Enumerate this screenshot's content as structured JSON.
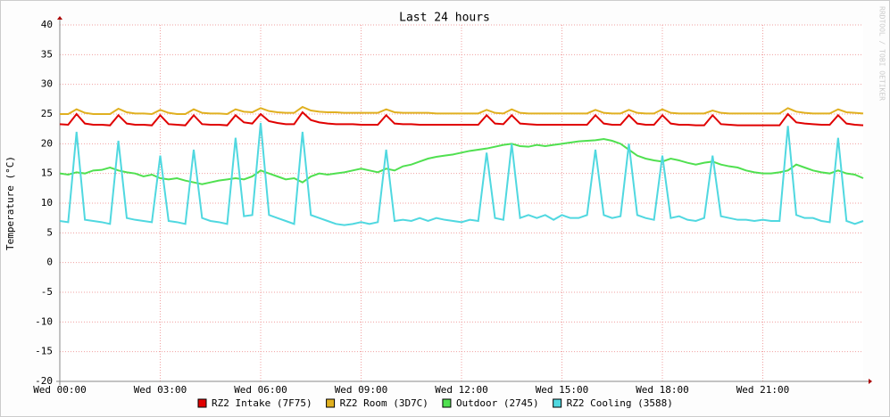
{
  "chart_data": {
    "type": "line",
    "title": "Last 24 hours",
    "y_label": "Temperature (°C)",
    "watermark": "RRDTOOL / TOBI OETIKER",
    "xlim": [
      0,
      24
    ],
    "ylim": [
      -20,
      40
    ],
    "xticks": [
      {
        "value": 0,
        "label": "Wed 00:00"
      },
      {
        "value": 3,
        "label": "Wed 03:00"
      },
      {
        "value": 6,
        "label": "Wed 06:00"
      },
      {
        "value": 9,
        "label": "Wed 09:00"
      },
      {
        "value": 12,
        "label": "Wed 12:00"
      },
      {
        "value": 15,
        "label": "Wed 15:00"
      },
      {
        "value": 18,
        "label": "Wed 18:00"
      },
      {
        "value": 21,
        "label": "Wed 21:00"
      }
    ],
    "yticks": [
      -20,
      -15,
      -10,
      -5,
      0,
      5,
      10,
      15,
      20,
      25,
      30,
      35,
      40
    ],
    "grid": true,
    "x": [
      0,
      0.25,
      0.5,
      0.75,
      1,
      1.25,
      1.5,
      1.75,
      2,
      2.25,
      2.5,
      2.75,
      3,
      3.25,
      3.5,
      3.75,
      4,
      4.25,
      4.5,
      4.75,
      5,
      5.25,
      5.5,
      5.75,
      6,
      6.25,
      6.5,
      6.75,
      7,
      7.25,
      7.5,
      7.75,
      8,
      8.25,
      8.5,
      8.75,
      9,
      9.25,
      9.5,
      9.75,
      10,
      10.25,
      10.5,
      10.75,
      11,
      11.25,
      11.5,
      11.75,
      12,
      12.25,
      12.5,
      12.75,
      13,
      13.25,
      13.5,
      13.75,
      14,
      14.25,
      14.5,
      14.75,
      15,
      15.25,
      15.5,
      15.75,
      16,
      16.25,
      16.5,
      16.75,
      17,
      17.25,
      17.5,
      17.75,
      18,
      18.25,
      18.5,
      18.75,
      19,
      19.25,
      19.5,
      19.75,
      20,
      20.25,
      20.5,
      20.75,
      21,
      21.25,
      21.5,
      21.75,
      22,
      22.25,
      22.5,
      22.75,
      23,
      23.25,
      23.5,
      23.75,
      24
    ],
    "series": [
      {
        "name": "RZ2 Intake (7F75)",
        "color": "#e00000",
        "values": [
          23.3,
          23.2,
          25,
          23.4,
          23.2,
          23.2,
          23.1,
          24.8,
          23.4,
          23.2,
          23.2,
          23.1,
          24.8,
          23.3,
          23.2,
          23.1,
          24.8,
          23.3,
          23.2,
          23.2,
          23.1,
          24.8,
          23.6,
          23.4,
          25,
          23.8,
          23.5,
          23.3,
          23.3,
          25.3,
          24,
          23.6,
          23.4,
          23.3,
          23.3,
          23.3,
          23.2,
          23.2,
          23.2,
          24.8,
          23.4,
          23.3,
          23.3,
          23.2,
          23.2,
          23.2,
          23.2,
          23.2,
          23.2,
          23.2,
          23.2,
          24.8,
          23.4,
          23.3,
          24.8,
          23.4,
          23.3,
          23.2,
          23.2,
          23.2,
          23.2,
          23.2,
          23.2,
          23.2,
          24.8,
          23.4,
          23.2,
          23.2,
          24.8,
          23.4,
          23.2,
          23.2,
          24.8,
          23.4,
          23.2,
          23.2,
          23.1,
          23.1,
          24.8,
          23.3,
          23.2,
          23.1,
          23.1,
          23.1,
          23.1,
          23.1,
          23.1,
          25,
          23.6,
          23.4,
          23.3,
          23.2,
          23.2,
          24.8,
          23.4,
          23.2,
          23.1
        ]
      },
      {
        "name": "RZ2 Room (3D7C)",
        "color": "#e0b020",
        "values": [
          25,
          25,
          25.8,
          25.2,
          25,
          25,
          25,
          25.9,
          25.3,
          25.1,
          25.1,
          25,
          25.7,
          25.2,
          25,
          25,
          25.8,
          25.2,
          25.1,
          25.1,
          25,
          25.8,
          25.4,
          25.3,
          26,
          25.5,
          25.3,
          25.2,
          25.2,
          26.2,
          25.6,
          25.4,
          25.3,
          25.3,
          25.2,
          25.2,
          25.2,
          25.2,
          25.2,
          25.8,
          25.3,
          25.2,
          25.2,
          25.2,
          25.2,
          25.1,
          25.1,
          25.1,
          25.1,
          25.1,
          25.1,
          25.7,
          25.2,
          25.1,
          25.8,
          25.2,
          25.1,
          25.1,
          25.1,
          25.1,
          25.1,
          25.1,
          25.1,
          25.1,
          25.7,
          25.2,
          25.1,
          25.1,
          25.7,
          25.2,
          25.1,
          25.1,
          25.8,
          25.2,
          25.1,
          25.1,
          25.1,
          25.1,
          25.6,
          25.2,
          25.1,
          25.1,
          25.1,
          25.1,
          25.1,
          25.1,
          25.1,
          26,
          25.4,
          25.2,
          25.1,
          25.1,
          25.1,
          25.8,
          25.3,
          25.2,
          25.1
        ]
      },
      {
        "name": "Outdoor (2745)",
        "color": "#50e050",
        "values": [
          15,
          14.8,
          15.2,
          15,
          15.5,
          15.6,
          16,
          15.5,
          15.2,
          15,
          14.5,
          14.8,
          14.2,
          14,
          14.2,
          13.8,
          13.5,
          13.2,
          13.5,
          13.8,
          14,
          14.2,
          14,
          14.5,
          15.5,
          15,
          14.5,
          14,
          14.2,
          13.5,
          14.5,
          15,
          14.8,
          15,
          15.2,
          15.5,
          15.8,
          15.5,
          15.2,
          15.8,
          15.5,
          16.2,
          16.5,
          17,
          17.5,
          17.8,
          18,
          18.2,
          18.5,
          18.8,
          19,
          19.2,
          19.5,
          19.8,
          20,
          19.6,
          19.5,
          19.8,
          19.6,
          19.8,
          20,
          20.2,
          20.4,
          20.5,
          20.6,
          20.8,
          20.5,
          20,
          19,
          18,
          17.5,
          17.2,
          17,
          17.5,
          17.2,
          16.8,
          16.5,
          16.8,
          17,
          16.5,
          16.2,
          16,
          15.5,
          15.2,
          15,
          15,
          15.2,
          15.5,
          16.5,
          16,
          15.5,
          15.2,
          15,
          15.5,
          15,
          14.8,
          14.2
        ]
      },
      {
        "name": "RZ2 Cooling (3588)",
        "color": "#50d8e0",
        "values": [
          7,
          6.8,
          22,
          7.2,
          7,
          6.8,
          6.5,
          20.5,
          7.5,
          7.2,
          7,
          6.8,
          18,
          7,
          6.8,
          6.5,
          19,
          7.5,
          7,
          6.8,
          6.5,
          21,
          7.8,
          8,
          23.5,
          8,
          7.5,
          7,
          6.5,
          22,
          8,
          7.5,
          7,
          6.5,
          6.3,
          6.5,
          6.8,
          6.5,
          6.8,
          19,
          7,
          7.2,
          7,
          7.5,
          7,
          7.5,
          7.2,
          7,
          6.8,
          7.2,
          7,
          18.5,
          7.5,
          7.2,
          20,
          7.5,
          8,
          7.5,
          8,
          7.2,
          8,
          7.5,
          7.5,
          8,
          19,
          8,
          7.5,
          7.8,
          20,
          8,
          7.5,
          7.2,
          18,
          7.5,
          7.8,
          7.2,
          7,
          7.5,
          18,
          7.8,
          7.5,
          7.2,
          7.2,
          7,
          7.2,
          7,
          7,
          23,
          8,
          7.5,
          7.5,
          7,
          6.8,
          21,
          7,
          6.5,
          7
        ]
      }
    ]
  }
}
